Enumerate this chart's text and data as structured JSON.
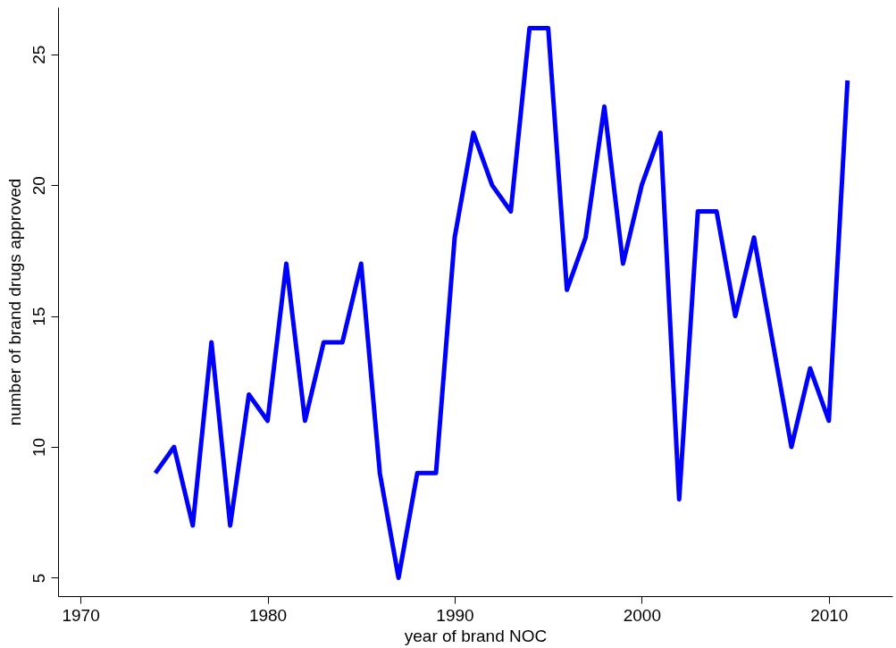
{
  "chart_data": {
    "type": "line",
    "xlabel": "year of brand NOC",
    "ylabel": "number of brand drugs approved",
    "x": [
      1974,
      1975,
      1976,
      1977,
      1978,
      1979,
      1980,
      1981,
      1982,
      1983,
      1984,
      1985,
      1986,
      1987,
      1988,
      1989,
      1990,
      1991,
      1992,
      1993,
      1994,
      1995,
      1996,
      1997,
      1998,
      1999,
      2000,
      2001,
      2002,
      2003,
      2004,
      2005,
      2006,
      2007,
      2008,
      2009,
      2010,
      2011
    ],
    "series": [
      {
        "color": "#0000ff",
        "values": [
          9,
          10,
          7,
          14,
          7,
          12,
          11,
          17,
          11,
          14,
          14,
          17,
          9,
          5,
          9,
          9,
          18,
          22,
          20,
          19,
          26,
          26,
          16,
          18,
          23,
          17,
          20,
          22,
          8,
          19,
          19,
          15,
          18,
          14,
          10,
          13,
          11,
          24
        ]
      }
    ],
    "xlim": [
      1968.8,
      2013.4
    ],
    "ylim": [
      4.3,
      26.8
    ],
    "xticks": [
      1970,
      1980,
      1990,
      2000,
      2010
    ],
    "yticks": [
      5,
      10,
      15,
      20,
      25
    ],
    "grid": false,
    "marker": "none",
    "line_style": "solid"
  }
}
